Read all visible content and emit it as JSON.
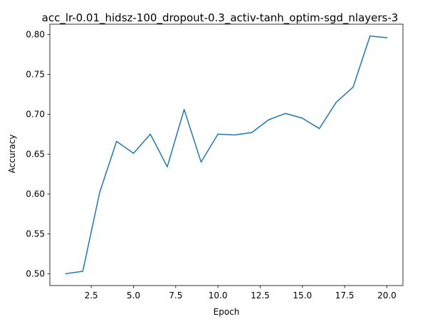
{
  "chart_data": {
    "type": "line",
    "title": "acc_lr-0.01_hidsz-100_dropout-0.3_activ-tanh_optim-sgd_nlayers-3",
    "xlabel": "Epoch",
    "ylabel": "Accuracy",
    "x": [
      1,
      2,
      3,
      4,
      5,
      6,
      7,
      8,
      9,
      10,
      11,
      12,
      13,
      14,
      15,
      16,
      17,
      18,
      19,
      20
    ],
    "series": [
      {
        "values": [
          0.5,
          0.503,
          0.602,
          0.666,
          0.651,
          0.675,
          0.634,
          0.706,
          0.64,
          0.675,
          0.674,
          0.677,
          0.693,
          0.701,
          0.695,
          0.682,
          0.715,
          0.734,
          0.798,
          0.796
        ],
        "color": "#1f77b4"
      }
    ],
    "xticks": [
      "2.5",
      "5.0",
      "7.5",
      "10.0",
      "12.5",
      "15.0",
      "17.5",
      "20.0"
    ],
    "yticks": [
      "0.50",
      "0.55",
      "0.60",
      "0.65",
      "0.70",
      "0.75",
      "0.80"
    ],
    "xlim": [
      0.05,
      20.95
    ],
    "ylim": [
      0.4851,
      0.8129
    ],
    "grid": false
  }
}
